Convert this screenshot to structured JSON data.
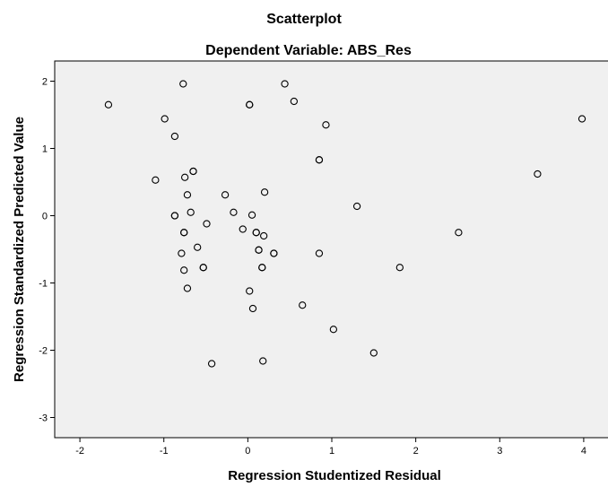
{
  "chart_data": {
    "type": "scatter",
    "title": "Scatterplot",
    "subtitle": "Dependent Variable: ABS_Res",
    "xlabel": "Regression Studentized Residual",
    "ylabel": "Regression Standardized Predicted Value",
    "xlim": [
      -2.3,
      4.3
    ],
    "ylim": [
      -3.3,
      2.3
    ],
    "xticks": [
      -2,
      -1,
      0,
      1,
      2,
      3,
      4
    ],
    "yticks": [
      -3,
      -2,
      -1,
      0,
      1,
      2
    ],
    "xtick_labels": [
      "-2",
      "-1",
      "0",
      "1",
      "2",
      "3",
      "4"
    ],
    "ytick_labels": [
      "-3",
      "-2",
      "-1",
      "0",
      "1",
      "2"
    ],
    "grid": false,
    "colors": {
      "plot_background": "#f0f0f0",
      "marker": "#000000"
    },
    "points": [
      {
        "x": -1.66,
        "y": 1.65
      },
      {
        "x": -0.77,
        "y": 1.96
      },
      {
        "x": 0.44,
        "y": 1.96
      },
      {
        "x": 0.02,
        "y": 1.65
      },
      {
        "x": 0.02,
        "y": 1.65
      },
      {
        "x": 0.55,
        "y": 1.7
      },
      {
        "x": -0.99,
        "y": 1.44
      },
      {
        "x": 0.93,
        "y": 1.35
      },
      {
        "x": 3.98,
        "y": 1.44
      },
      {
        "x": -0.87,
        "y": 1.18
      },
      {
        "x": 0.85,
        "y": 0.83
      },
      {
        "x": 0.85,
        "y": 0.83
      },
      {
        "x": -0.65,
        "y": 0.66
      },
      {
        "x": -0.65,
        "y": 0.66
      },
      {
        "x": -0.75,
        "y": 0.57
      },
      {
        "x": 3.45,
        "y": 0.62
      },
      {
        "x": -1.1,
        "y": 0.53
      },
      {
        "x": -0.72,
        "y": 0.31
      },
      {
        "x": -0.27,
        "y": 0.31
      },
      {
        "x": 0.2,
        "y": 0.35
      },
      {
        "x": 1.3,
        "y": 0.14
      },
      {
        "x": -0.87,
        "y": 0.0
      },
      {
        "x": -0.87,
        "y": 0.0
      },
      {
        "x": -0.68,
        "y": 0.05
      },
      {
        "x": -0.17,
        "y": 0.05
      },
      {
        "x": 0.05,
        "y": 0.01
      },
      {
        "x": -0.49,
        "y": -0.12
      },
      {
        "x": -0.06,
        "y": -0.2
      },
      {
        "x": 0.1,
        "y": -0.25
      },
      {
        "x": 0.1,
        "y": -0.25
      },
      {
        "x": 0.19,
        "y": -0.3
      },
      {
        "x": -0.76,
        "y": -0.25
      },
      {
        "x": -0.76,
        "y": -0.25
      },
      {
        "x": 2.51,
        "y": -0.25
      },
      {
        "x": -0.6,
        "y": -0.47
      },
      {
        "x": 0.13,
        "y": -0.51
      },
      {
        "x": 0.13,
        "y": -0.51
      },
      {
        "x": 0.31,
        "y": -0.56
      },
      {
        "x": 0.31,
        "y": -0.56
      },
      {
        "x": -0.79,
        "y": -0.56
      },
      {
        "x": 0.85,
        "y": -0.56
      },
      {
        "x": -0.53,
        "y": -0.77
      },
      {
        "x": -0.53,
        "y": -0.77
      },
      {
        "x": 0.17,
        "y": -0.77
      },
      {
        "x": 0.17,
        "y": -0.77
      },
      {
        "x": 1.81,
        "y": -0.77
      },
      {
        "x": -0.76,
        "y": -0.81
      },
      {
        "x": -0.72,
        "y": -1.08
      },
      {
        "x": 0.02,
        "y": -1.12
      },
      {
        "x": 0.65,
        "y": -1.33
      },
      {
        "x": 0.06,
        "y": -1.38
      },
      {
        "x": 1.02,
        "y": -1.69
      },
      {
        "x": 1.5,
        "y": -2.04
      },
      {
        "x": -0.43,
        "y": -2.2
      },
      {
        "x": 0.18,
        "y": -2.16
      }
    ]
  }
}
